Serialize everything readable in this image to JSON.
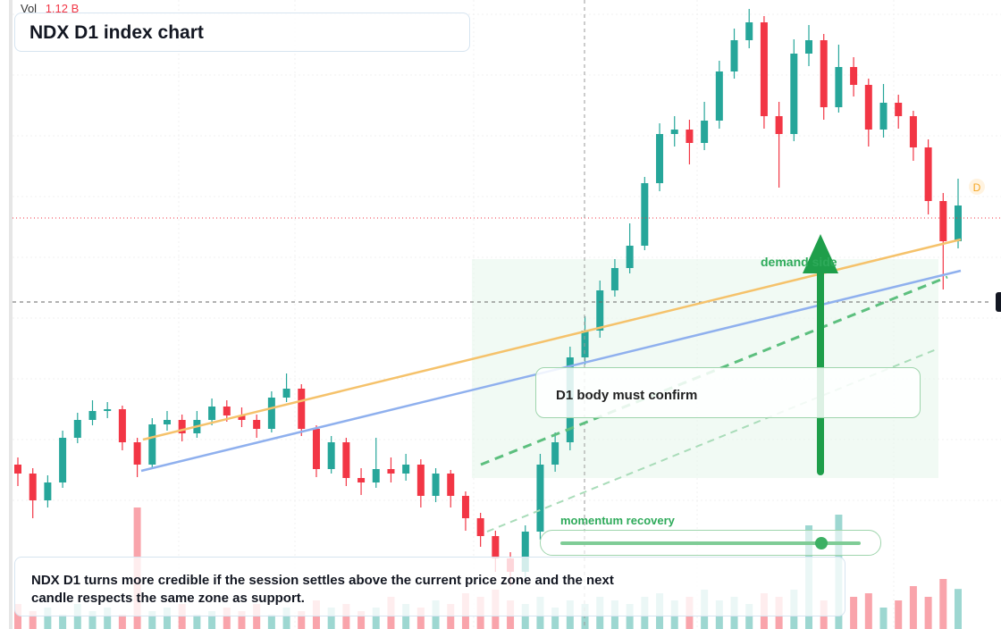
{
  "header": {
    "volume_label": "Vol",
    "volume_value": "1.12 B",
    "title": "NDX D1 index chart"
  },
  "chart_data": {
    "type": "candlestick",
    "open": [
      184,
      174,
      144,
      164,
      214,
      234,
      244,
      246,
      209,
      184,
      229,
      234,
      219,
      234,
      249,
      239,
      234,
      224,
      259,
      269,
      224,
      179,
      209,
      169,
      164,
      179,
      174,
      184,
      149,
      174,
      149,
      124,
      104,
      79,
      64,
      109,
      184,
      209,
      304,
      334,
      379,
      404,
      429,
      499,
      554,
      559,
      544,
      569,
      624,
      659,
      679,
      574,
      554,
      644,
      659,
      584,
      629,
      609,
      559,
      589,
      574,
      539,
      479,
      434
    ],
    "high": [
      192,
      180,
      172,
      222,
      242,
      256,
      254,
      250,
      214,
      236,
      244,
      240,
      244,
      258,
      256,
      248,
      240,
      266,
      286,
      274,
      228,
      216,
      214,
      180,
      214,
      192,
      196,
      190,
      180,
      178,
      154,
      130,
      110,
      86,
      116,
      196,
      220,
      316,
      350,
      390,
      414,
      454,
      506,
      566,
      574,
      570,
      590,
      636,
      672,
      694,
      686,
      590,
      660,
      676,
      666,
      654,
      640,
      616,
      610,
      598,
      580,
      548,
      488,
      504
    ],
    "low": [
      160,
      124,
      136,
      158,
      208,
      228,
      236,
      200,
      170,
      180,
      222,
      210,
      214,
      228,
      232,
      226,
      214,
      220,
      254,
      216,
      170,
      174,
      160,
      150,
      158,
      164,
      166,
      136,
      142,
      136,
      110,
      92,
      64,
      48,
      58,
      100,
      176,
      200,
      296,
      326,
      372,
      398,
      424,
      490,
      540,
      520,
      536,
      560,
      616,
      650,
      560,
      494,
      546,
      630,
      570,
      578,
      596,
      540,
      550,
      560,
      524,
      464,
      380,
      426
    ],
    "close": [
      174,
      144,
      164,
      214,
      234,
      244,
      246,
      209,
      184,
      229,
      234,
      219,
      234,
      249,
      239,
      234,
      224,
      259,
      269,
      224,
      179,
      209,
      169,
      164,
      179,
      174,
      184,
      149,
      174,
      149,
      124,
      104,
      79,
      64,
      109,
      184,
      209,
      304,
      334,
      379,
      404,
      429,
      499,
      554,
      559,
      544,
      569,
      624,
      659,
      679,
      574,
      554,
      644,
      659,
      584,
      629,
      609,
      559,
      589,
      574,
      539,
      479,
      434,
      474
    ],
    "volume": [
      0.7,
      0.5,
      0.6,
      0.4,
      0.7,
      0.5,
      0.6,
      0.4,
      3.4,
      0.5,
      0.6,
      0.7,
      0.4,
      0.5,
      0.6,
      0.5,
      0.7,
      0.4,
      0.6,
      0.5,
      0.8,
      0.6,
      0.7,
      0.5,
      0.6,
      0.9,
      0.7,
      0.6,
      0.8,
      0.7,
      1.0,
      0.9,
      1.1,
      0.8,
      0.7,
      0.9,
      0.6,
      0.8,
      0.7,
      0.9,
      0.8,
      0.7,
      0.9,
      1.0,
      0.8,
      0.9,
      1.1,
      0.8,
      0.9,
      0.7,
      1.0,
      0.9,
      1.1,
      2.9,
      0.8,
      3.2,
      0.9,
      1.0,
      0.6,
      0.8,
      1.2,
      0.9,
      1.4,
      1.12
    ],
    "ylim": [
      0,
      704
    ],
    "volume_lim": [
      0,
      4.5
    ],
    "up_color": "#26a69a",
    "down_color": "#f23645"
  },
  "annotations": {
    "zone_label": "demand side",
    "confirm_label": "D1 body must confirm",
    "momentum_label": "momentum recovery",
    "marker": "D",
    "note": "NDX D1 turns more credible if the session settles above the current price zone and the next candle respects the same zone as support."
  }
}
